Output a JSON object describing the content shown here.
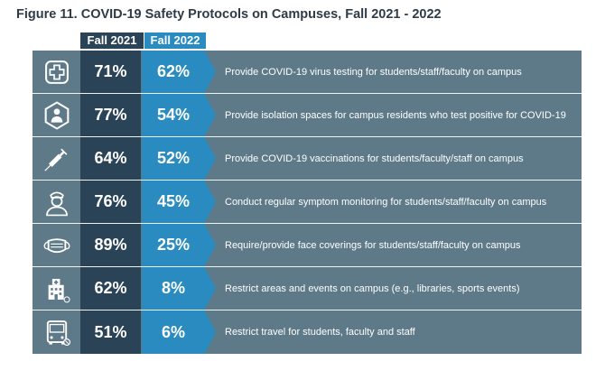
{
  "title": "Figure 11.  COVID-19 Safety Protocols on Campuses, Fall 2021 - 2022",
  "colors": {
    "dark": "#2b4356",
    "blue": "#2a8bc1",
    "row": "#5e7a88"
  },
  "chart_data": {
    "type": "table",
    "title": "Figure 11.  COVID-19 Safety Protocols on Campuses, Fall 2021 - 2022",
    "columns": [
      "Fall 2021",
      "Fall 2022"
    ],
    "rows": [
      {
        "icon": "medical-cross-icon",
        "label": "Provide COVID-19 virus testing for students/staff/faculty on campus",
        "fall2021": "71%",
        "fall2022": "62%"
      },
      {
        "icon": "isolated-person-icon",
        "label": "Provide isolation spaces for campus residents who test positive for COVID-19",
        "fall2021": "77%",
        "fall2022": "54%"
      },
      {
        "icon": "syringe-icon",
        "label": "Provide COVID-19 vaccinations for students/faculty/staff on campus",
        "fall2021": "64%",
        "fall2022": "52%"
      },
      {
        "icon": "nurse-icon",
        "label": "Conduct regular symptom monitoring for students/staff/faculty on campus",
        "fall2021": "76%",
        "fall2022": "45%"
      },
      {
        "icon": "face-mask-icon",
        "label": "Require/provide face coverings for students/staff/faculty on campus",
        "fall2021": "89%",
        "fall2022": "25%"
      },
      {
        "icon": "building-icon",
        "label": "Restrict areas and events on campus (e.g., libraries, sports events)",
        "fall2021": "62%",
        "fall2022": "8%"
      },
      {
        "icon": "bus-icon",
        "label": "Restrict travel for students, faculty and staff",
        "fall2021": "51%",
        "fall2022": "6%"
      }
    ]
  }
}
